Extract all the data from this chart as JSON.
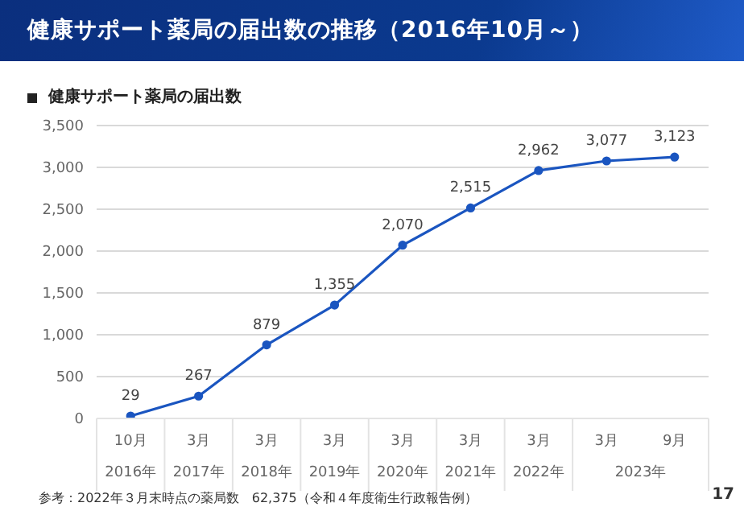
{
  "chart_data": {
    "type": "line",
    "title": "健康サポート薬局の届出数の推移（2016年10月～）",
    "subtitle": "健康サポート薬局の届出数",
    "categories": [
      "10月",
      "3月",
      "3月",
      "3月",
      "3月",
      "3月",
      "3月",
      "3月",
      "9月"
    ],
    "series": [
      {
        "color": "#1a55c0",
        "values": [
          29,
          267,
          879,
          1355,
          2070,
          2515,
          2962,
          3077,
          3123
        ],
        "value_labels": [
          "29",
          "267",
          "879",
          "1,355",
          "2,070",
          "2,515",
          "2,962",
          "3,077",
          "3,123"
        ]
      }
    ],
    "ylim": [
      0,
      3500
    ],
    "yticks": [
      0,
      500,
      {
        "value": 1000,
        "label": "1,000"
      },
      {
        "value": 1500,
        "label": "1,500"
      },
      {
        "value": 2000,
        "label": "2,000"
      },
      {
        "value": 2500,
        "label": "2,500"
      },
      {
        "value": 3000,
        "label": "3,000"
      },
      {
        "value": 3500,
        "label": "3,500"
      }
    ],
    "grid": "y",
    "marker": "circle",
    "line_style": "solid",
    "annotations": [
      "2016年",
      "2017年",
      "2018年",
      "2019年",
      "2020年",
      "2021年",
      "2022年",
      "2023年",
      "参考：2022年３月末時点の薬局数　62,375（令和４年度衛生行政報告例）",
      "17"
    ]
  }
}
